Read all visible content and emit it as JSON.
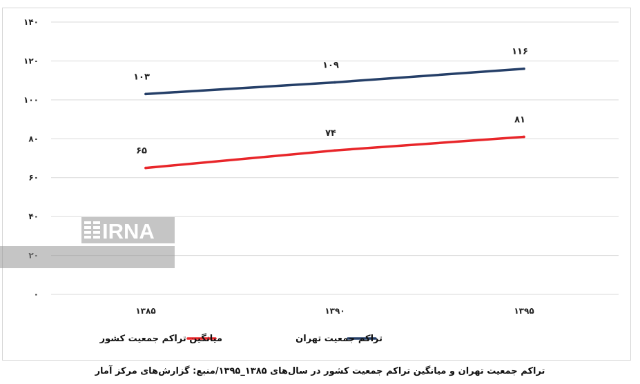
{
  "chart_data": {
    "type": "line",
    "categories": [
      "۱۳۸۵",
      "۱۳۹۰",
      "۱۳۹۵"
    ],
    "series": [
      {
        "name": "تراکم جمعیت تهران",
        "values": [
          103,
          109,
          116
        ],
        "labels": [
          "۱۰۳",
          "۱۰۹",
          "۱۱۶"
        ],
        "color": "#253f68"
      },
      {
        "name": "میانگین تراکم جمعیت کشور",
        "values": [
          65,
          74,
          81
        ],
        "labels": [
          "۶۵",
          "۷۴",
          "۸۱"
        ],
        "color": "#e8262a"
      }
    ],
    "ylim": [
      0,
      140
    ],
    "yticks": [
      {
        "value": 0,
        "label": "۰"
      },
      {
        "value": 20,
        "label": "۲۰"
      },
      {
        "value": 40,
        "label": "۴۰"
      },
      {
        "value": 60,
        "label": "۶۰"
      },
      {
        "value": 80,
        "label": "۸۰"
      },
      {
        "value": 100,
        "label": "۱۰۰"
      },
      {
        "value": 120,
        "label": "۱۲۰"
      },
      {
        "value": 140,
        "label": "۱۴۰"
      }
    ],
    "grid": true,
    "legend": "bottom",
    "title": "",
    "xlabel": "",
    "ylabel": ""
  },
  "caption": "تراکم جمعیت تهران و میانگین تراکم جمعیت کشور در سال‌های ۱۳۸۵_۱۳۹۵/منبع: گزارش‌های مرکز آمار",
  "watermark": "IRNA"
}
